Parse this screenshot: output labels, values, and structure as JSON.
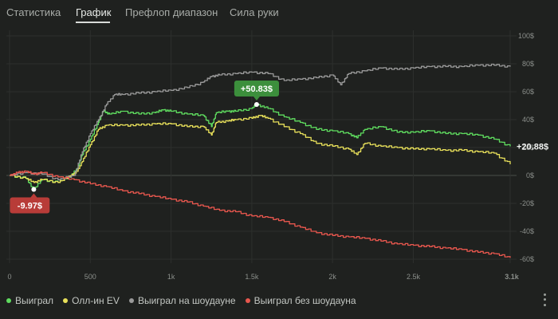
{
  "tabs": [
    {
      "label": "Статистика",
      "active": false
    },
    {
      "label": "График",
      "active": true
    },
    {
      "label": "Префлоп диапазон",
      "active": false
    },
    {
      "label": "Сила руки",
      "active": false
    }
  ],
  "legend": [
    {
      "label": "Выиграл",
      "color": "#5fdc5f"
    },
    {
      "label": "Олл-ин EV",
      "color": "#e8e05a"
    },
    {
      "label": "Выиграл на шоудауне",
      "color": "#9a9a9a"
    },
    {
      "label": "Выиграл без шоудауна",
      "color": "#e8574e"
    }
  ],
  "more_icon": "more-vertical-icon",
  "chart_data": {
    "type": "line",
    "x_tick_labels": [
      "0",
      "500",
      "1k",
      "1.5k",
      "2k",
      "2.5k",
      "3.1k"
    ],
    "x_ticks": [
      0,
      500,
      1000,
      1500,
      2000,
      2500,
      3100
    ],
    "y_tick_labels": [
      "100$",
      "80$",
      "60$",
      "40$",
      "20$",
      "0$",
      "-20$",
      "-40$",
      "-60$"
    ],
    "y_ticks": [
      100,
      80,
      60,
      40,
      20,
      0,
      -20,
      -40,
      -60
    ],
    "xlim": [
      0,
      3100
    ],
    "ylim": [
      -60,
      100
    ],
    "grid": true,
    "legend_position": "bottom-left",
    "series": [
      {
        "name": "Выиграл",
        "color": "#5fdc5f",
        "points": [
          [
            0,
            0
          ],
          [
            100,
            -2
          ],
          [
            150,
            -9.97
          ],
          [
            200,
            -3
          ],
          [
            300,
            -5
          ],
          [
            380,
            0
          ],
          [
            420,
            5
          ],
          [
            450,
            15
          ],
          [
            500,
            26
          ],
          [
            550,
            38
          ],
          [
            580,
            46
          ],
          [
            620,
            44
          ],
          [
            700,
            46
          ],
          [
            800,
            44
          ],
          [
            900,
            45
          ],
          [
            950,
            47
          ],
          [
            1000,
            46
          ],
          [
            1100,
            44
          ],
          [
            1200,
            43
          ],
          [
            1250,
            35
          ],
          [
            1280,
            45
          ],
          [
            1350,
            46
          ],
          [
            1400,
            46
          ],
          [
            1500,
            48
          ],
          [
            1530,
            50.83
          ],
          [
            1600,
            48
          ],
          [
            1700,
            42
          ],
          [
            1800,
            38
          ],
          [
            1900,
            33
          ],
          [
            2000,
            32
          ],
          [
            2100,
            30
          ],
          [
            2150,
            27
          ],
          [
            2200,
            33
          ],
          [
            2300,
            35
          ],
          [
            2400,
            31
          ],
          [
            2500,
            31
          ],
          [
            2600,
            32
          ],
          [
            2700,
            30
          ],
          [
            2800,
            30
          ],
          [
            2900,
            29
          ],
          [
            3000,
            26
          ],
          [
            3100,
            20.88
          ]
        ]
      },
      {
        "name": "Олл-ин EV",
        "color": "#e8e05a",
        "points": [
          [
            0,
            0
          ],
          [
            100,
            -2
          ],
          [
            150,
            -5
          ],
          [
            200,
            -3
          ],
          [
            300,
            -5
          ],
          [
            380,
            0
          ],
          [
            420,
            3
          ],
          [
            450,
            10
          ],
          [
            500,
            22
          ],
          [
            550,
            33
          ],
          [
            600,
            36
          ],
          [
            700,
            36
          ],
          [
            800,
            36
          ],
          [
            900,
            37
          ],
          [
            1000,
            37
          ],
          [
            1100,
            35
          ],
          [
            1200,
            35
          ],
          [
            1250,
            29
          ],
          [
            1280,
            38
          ],
          [
            1350,
            39
          ],
          [
            1400,
            40
          ],
          [
            1500,
            41
          ],
          [
            1550,
            43
          ],
          [
            1600,
            41
          ],
          [
            1700,
            35
          ],
          [
            1800,
            30
          ],
          [
            1900,
            23
          ],
          [
            2000,
            21
          ],
          [
            2100,
            19
          ],
          [
            2150,
            15
          ],
          [
            2200,
            23
          ],
          [
            2300,
            21
          ],
          [
            2400,
            20
          ],
          [
            2500,
            19
          ],
          [
            2600,
            19
          ],
          [
            2700,
            18
          ],
          [
            2800,
            18
          ],
          [
            2900,
            17
          ],
          [
            3000,
            16
          ],
          [
            3100,
            8
          ]
        ]
      },
      {
        "name": "Выиграл на шоудауне",
        "color": "#9a9a9a",
        "points": [
          [
            0,
            0
          ],
          [
            100,
            2
          ],
          [
            200,
            1
          ],
          [
            300,
            -3
          ],
          [
            400,
            0
          ],
          [
            450,
            17
          ],
          [
            500,
            30
          ],
          [
            550,
            40
          ],
          [
            600,
            51
          ],
          [
            650,
            58
          ],
          [
            700,
            58
          ],
          [
            800,
            59
          ],
          [
            900,
            60
          ],
          [
            1000,
            61
          ],
          [
            1100,
            63
          ],
          [
            1200,
            67
          ],
          [
            1250,
            71
          ],
          [
            1300,
            72
          ],
          [
            1400,
            73
          ],
          [
            1500,
            74
          ],
          [
            1600,
            73
          ],
          [
            1700,
            68
          ],
          [
            1800,
            69
          ],
          [
            1900,
            70
          ],
          [
            2000,
            72
          ],
          [
            2050,
            65
          ],
          [
            2100,
            73
          ],
          [
            2200,
            75
          ],
          [
            2300,
            77
          ],
          [
            2400,
            76
          ],
          [
            2500,
            77
          ],
          [
            2600,
            78
          ],
          [
            2700,
            78
          ],
          [
            2800,
            78
          ],
          [
            2900,
            79
          ],
          [
            3000,
            79
          ],
          [
            3100,
            78
          ]
        ]
      },
      {
        "name": "Выиграл без шоудауна",
        "color": "#e8574e",
        "points": [
          [
            0,
            0
          ],
          [
            50,
            2
          ],
          [
            100,
            3
          ],
          [
            150,
            1
          ],
          [
            200,
            2
          ],
          [
            300,
            -1
          ],
          [
            400,
            -3
          ],
          [
            500,
            -6
          ],
          [
            600,
            -8
          ],
          [
            700,
            -11
          ],
          [
            800,
            -13
          ],
          [
            900,
            -15
          ],
          [
            1000,
            -17
          ],
          [
            1100,
            -19
          ],
          [
            1200,
            -22
          ],
          [
            1300,
            -25
          ],
          [
            1400,
            -26
          ],
          [
            1500,
            -29
          ],
          [
            1600,
            -30
          ],
          [
            1700,
            -33
          ],
          [
            1800,
            -37
          ],
          [
            1900,
            -41
          ],
          [
            2000,
            -43
          ],
          [
            2100,
            -44
          ],
          [
            2200,
            -45
          ],
          [
            2300,
            -47
          ],
          [
            2400,
            -49
          ],
          [
            2500,
            -50
          ],
          [
            2600,
            -51
          ],
          [
            2700,
            -52
          ],
          [
            2800,
            -53
          ],
          [
            2900,
            -55
          ],
          [
            3000,
            -56
          ],
          [
            3100,
            -59
          ]
        ]
      }
    ],
    "annotations": [
      {
        "text": "+50.83$",
        "x": 1530,
        "y": 50.83,
        "color": "#3c8f3c"
      },
      {
        "text": "-9.97$",
        "x": 150,
        "y": -9.97,
        "color": "#b83c38"
      },
      {
        "text": "+20.88$",
        "x": 3100,
        "y": 20.88,
        "color": "none"
      }
    ]
  }
}
